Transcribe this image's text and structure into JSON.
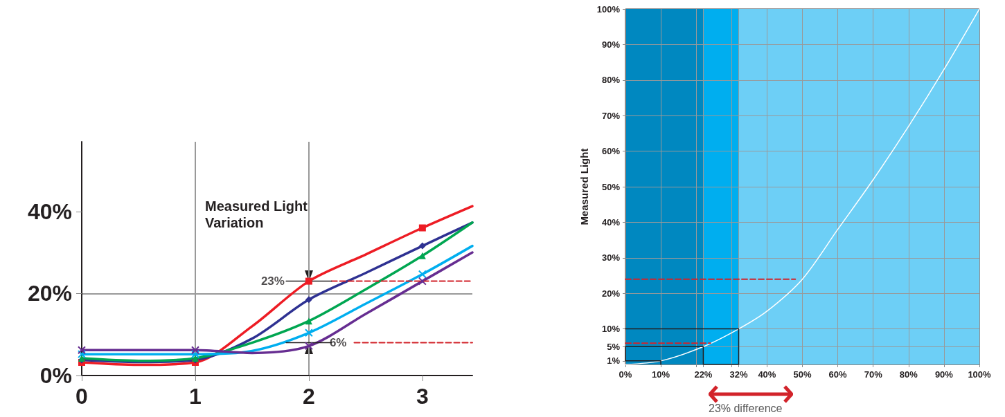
{
  "chart_data": [
    {
      "type": "line",
      "xlim": [
        0,
        3.44
      ],
      "xticks": [
        0,
        1,
        2,
        3
      ],
      "ylim": [
        0,
        57
      ],
      "yticks": [
        {
          "value": 0,
          "label": "0%"
        },
        {
          "value": 20,
          "label": "20%"
        },
        {
          "value": 40,
          "label": "40%"
        }
      ],
      "grid": true,
      "annotations": [
        "Measured Light Variation",
        {
          "text": "23%",
          "x": 2,
          "y": 23
        },
        {
          "text": "6%",
          "x": 2,
          "y": 8
        }
      ],
      "series": [
        {
          "color": "#ed1c24",
          "marker": "square",
          "x": [
            0,
            0.5,
            1,
            1.5,
            2,
            2.5,
            3,
            3.44
          ],
          "values": [
            3.2,
            2.6,
            3.2,
            12,
            23,
            29.5,
            36,
            41.3
          ]
        },
        {
          "color": "#2e3192",
          "marker": "diamond",
          "x": [
            0,
            0.5,
            1,
            1.5,
            2,
            2.5,
            3,
            3.44
          ],
          "values": [
            3.8,
            3.3,
            3.8,
            9,
            18.5,
            25,
            31.6,
            37.3
          ]
        },
        {
          "color": "#00a651",
          "marker": "triangle",
          "x": [
            0,
            0.5,
            1,
            1.5,
            2,
            2.5,
            3,
            3.44
          ],
          "values": [
            4.2,
            3.6,
            4.2,
            8,
            13.3,
            21,
            29.2,
            37.3
          ]
        },
        {
          "color": "#00aeef",
          "marker": "cross",
          "x": [
            0,
            0.5,
            1,
            1.5,
            2,
            2.5,
            3,
            3.44
          ],
          "values": [
            5.2,
            5.2,
            5.2,
            6,
            10.4,
            17.5,
            24.7,
            31.6
          ]
        },
        {
          "color": "#662d91",
          "marker": "cross",
          "x": [
            0,
            0.5,
            1,
            1.5,
            2,
            2.5,
            3,
            3.44
          ],
          "values": [
            6.2,
            6.2,
            6.2,
            5.5,
            7.2,
            15,
            23,
            30
          ]
        },
        {
          "color": "#d2232a",
          "marker": "none",
          "line_style": "dashed",
          "x": [
            2.2,
            3.44
          ],
          "values": [
            23,
            23
          ]
        },
        {
          "color": "#d2232a",
          "marker": "none",
          "line_style": "dashed",
          "x": [
            2.4,
            3.44
          ],
          "values": [
            8,
            8
          ]
        },
        {
          "color": "#231f20",
          "marker": "none",
          "x": [
            1.8,
            2.2
          ],
          "values": [
            23,
            23
          ]
        },
        {
          "color": "#231f20",
          "marker": "none",
          "x": [
            1.8,
            2.2
          ],
          "values": [
            8,
            8
          ]
        }
      ]
    },
    {
      "type": "line",
      "xlim": [
        0,
        100
      ],
      "xticks": [
        {
          "value": 0,
          "label": "0%"
        },
        {
          "value": 10,
          "label": "10%"
        },
        {
          "value": 20,
          "label": null
        },
        {
          "value": 22,
          "label": "22%"
        },
        {
          "value": 30,
          "label": null
        },
        {
          "value": 32,
          "label": "32%"
        },
        {
          "value": 40,
          "label": "40%"
        },
        {
          "value": 50,
          "label": "50%"
        },
        {
          "value": 60,
          "label": "60%"
        },
        {
          "value": 70,
          "label": "70%"
        },
        {
          "value": 80,
          "label": "80%"
        },
        {
          "value": 90,
          "label": "90%"
        },
        {
          "value": 100,
          "label": "100%"
        }
      ],
      "ylim": [
        0,
        100
      ],
      "yticks": [
        {
          "value": 1,
          "label": "1%"
        },
        {
          "value": 5,
          "label": "5%"
        },
        {
          "value": 10,
          "label": "10%"
        },
        {
          "value": 20,
          "label": "20%"
        },
        {
          "value": 30,
          "label": "30%"
        },
        {
          "value": 40,
          "label": "40%"
        },
        {
          "value": 50,
          "label": "50%"
        },
        {
          "value": 60,
          "label": "60%"
        },
        {
          "value": 70,
          "label": "70%"
        },
        {
          "value": 80,
          "label": "80%"
        },
        {
          "value": 90,
          "label": "90%"
        },
        {
          "value": 100,
          "label": "100%"
        }
      ],
      "ylabel": "Measured Light",
      "grid": true,
      "marker": "none",
      "bands": [
        {
          "axis": "x",
          "from": 0,
          "to": 22,
          "color": "#0088c0"
        },
        {
          "axis": "x",
          "from": 22,
          "to": 32,
          "color": "#00aeef"
        },
        {
          "axis": "x",
          "from": 32,
          "to": 100,
          "color": "#6dcff6"
        }
      ],
      "annotations": [
        "23% difference"
      ],
      "series": [
        {
          "color": "#ffffff",
          "x": [
            0,
            10,
            22,
            32,
            40,
            50,
            60,
            70,
            80,
            90,
            100
          ],
          "values": [
            0,
            1,
            5,
            10,
            15,
            24,
            38,
            52,
            67,
            83,
            100
          ]
        },
        {
          "color": "#231f20",
          "x": [
            10,
            10,
            0,
            0,
            22,
            22,
            32,
            32,
            0
          ],
          "values": [
            0,
            1,
            1,
            5,
            5,
            0,
            0,
            10,
            10
          ]
        },
        {
          "color": "#d2232a",
          "line_style": "dashed",
          "x": [
            0,
            48
          ],
          "values": [
            24,
            24
          ]
        },
        {
          "color": "#d2232a",
          "line_style": "dashed",
          "x": [
            0,
            24
          ],
          "values": [
            6,
            6
          ]
        }
      ]
    }
  ]
}
